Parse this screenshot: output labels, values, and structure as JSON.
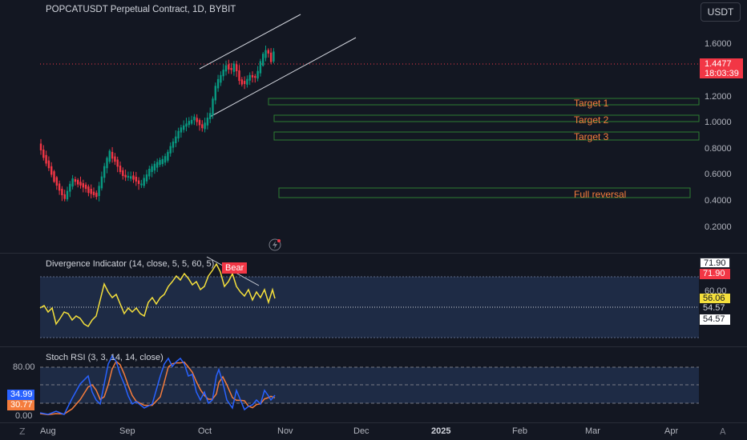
{
  "chart": {
    "title": "POPCATUSDT Perpetual Contract, 1D, BYBIT",
    "currency": "USDT",
    "current_price": "1.4477",
    "countdown": "18:03:39",
    "price_axis": [
      "1.6000",
      "1.2000",
      "1.0000",
      "0.8000",
      "0.6000",
      "0.4000",
      "0.2000"
    ],
    "targets": [
      "Target 1",
      "Target 2",
      "Target 3",
      "Full reversal"
    ],
    "time_axis": [
      "Aug",
      "Sep",
      "Oct",
      "Nov",
      "Dec",
      "2025",
      "Feb",
      "Mar",
      "Apr"
    ]
  },
  "divergence": {
    "title": "Divergence Indicator (14, close, 5, 5, 60, 5)",
    "bear_label": "Bear",
    "axis": [
      "71.90",
      "71.90",
      "60.00",
      "56.06",
      "54.57",
      "54.57"
    ],
    "colors": {
      "line": "#f5e03c",
      "bear": "#f23645",
      "band": "#1e2b45"
    }
  },
  "stoch": {
    "title": "Stoch RSI (3, 3, 14, 14, close)",
    "axis": [
      "80.00",
      "34.99",
      "30.77",
      "0.00"
    ],
    "colors": {
      "k": "#2962ff",
      "d": "#f57c3c"
    }
  },
  "colors": {
    "up": "#089981",
    "down": "#f23645",
    "bg": "#131722",
    "target": "#f57c3c"
  }
}
